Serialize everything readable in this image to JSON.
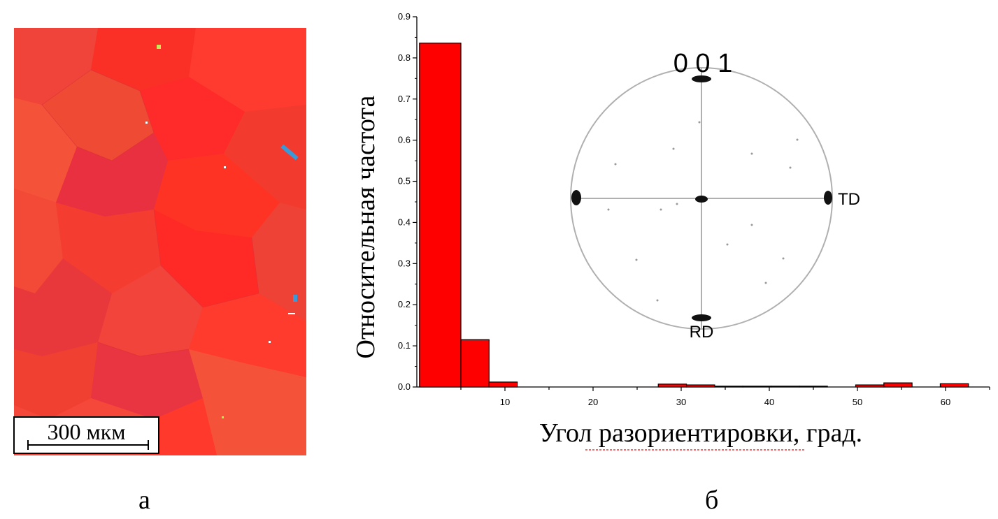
{
  "panel_a": {
    "scale_label": "300 мкм",
    "letter": "а",
    "colors": {
      "base": "#f33a2c",
      "grain_tones": [
        "#f23b2e",
        "#ff2a2a",
        "#ef4a34",
        "#f5523a",
        "#e83040",
        "#ff3b30",
        "#f0443a",
        "#fa3026",
        "#e9383c"
      ],
      "minor_phase": [
        "#3a9ad9",
        "#c8e85a"
      ]
    }
  },
  "panel_b": {
    "letter": "б",
    "pole_figure": {
      "title": "0 0 1",
      "td_label": "TD",
      "rd_label": "RD"
    }
  },
  "chart_data": {
    "type": "bar",
    "title": "",
    "xlabel": "Угол разориентировки, град.",
    "ylabel": "Относительная частота",
    "xlim": [
      0,
      65
    ],
    "ylim": [
      0,
      0.9
    ],
    "x_ticks": [
      10,
      20,
      30,
      40,
      50,
      60
    ],
    "y_ticks": [
      0.0,
      0.1,
      0.2,
      0.3,
      0.4,
      0.5,
      0.6,
      0.7,
      0.8,
      0.9
    ],
    "y_tick_labels": [
      "0.0",
      "0.1",
      "0.2",
      "0.3",
      "0.4",
      "0.5",
      "0.6",
      "0.7",
      "0.8",
      "0.9"
    ],
    "bar_color": "#ff0000",
    "bins": [
      {
        "from": 0.3,
        "to": 5.0,
        "value": 0.836
      },
      {
        "from": 5.0,
        "to": 8.2,
        "value": 0.115
      },
      {
        "from": 8.2,
        "to": 11.4,
        "value": 0.012
      },
      {
        "from": 11.4,
        "to": 14.6,
        "value": 0.0
      },
      {
        "from": 14.6,
        "to": 17.8,
        "value": 0.0
      },
      {
        "from": 17.8,
        "to": 21.0,
        "value": 0.0
      },
      {
        "from": 21.0,
        "to": 24.2,
        "value": 0.0
      },
      {
        "from": 24.2,
        "to": 27.4,
        "value": 0.0
      },
      {
        "from": 27.4,
        "to": 30.6,
        "value": 0.007
      },
      {
        "from": 30.6,
        "to": 33.8,
        "value": 0.005
      },
      {
        "from": 33.8,
        "to": 37.0,
        "value": 0.002
      },
      {
        "from": 37.0,
        "to": 40.2,
        "value": 0.002
      },
      {
        "from": 40.2,
        "to": 43.4,
        "value": 0.002
      },
      {
        "from": 43.4,
        "to": 46.6,
        "value": 0.002
      },
      {
        "from": 46.6,
        "to": 49.8,
        "value": 0.0
      },
      {
        "from": 49.8,
        "to": 53.0,
        "value": 0.005
      },
      {
        "from": 53.0,
        "to": 56.2,
        "value": 0.01
      },
      {
        "from": 56.2,
        "to": 59.4,
        "value": 0.0
      },
      {
        "from": 59.4,
        "to": 62.6,
        "value": 0.008
      }
    ]
  }
}
